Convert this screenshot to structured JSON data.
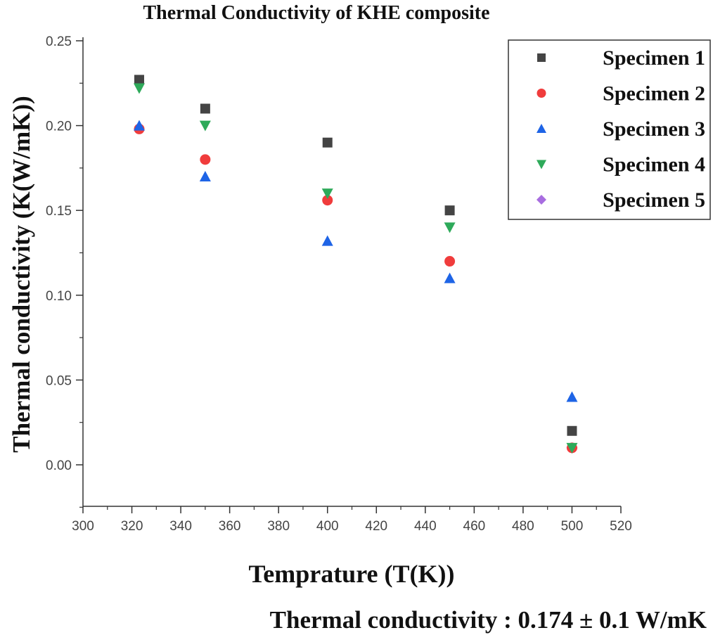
{
  "chart_data": {
    "type": "scatter",
    "title": "Thermal Conductivity of KHE composite",
    "xlabel": "Temprature (T(K))",
    "ylabel": "Thermal conductivity (K(W/mK))",
    "xlim": [
      300,
      520
    ],
    "ylim": [
      -0.025,
      0.25
    ],
    "xticks": [
      300,
      320,
      340,
      360,
      380,
      400,
      420,
      440,
      460,
      480,
      500,
      520
    ],
    "yticks": [
      "0.00",
      "0.05",
      "0.10",
      "0.15",
      "0.20",
      "0.25"
    ],
    "grid": false,
    "legend_position": "top-right",
    "annotation": "Thermal conductivity : 0.174 ± 0.1 W/mK",
    "series": [
      {
        "name": "Specimen 5",
        "marker": "diamond",
        "color": "#a86de0",
        "x": [
          500
        ],
        "y": [
          0.01
        ]
      },
      {
        "name": "Specimen 1",
        "marker": "square",
        "color": "#444444",
        "x": [
          323,
          350,
          400,
          450,
          500
        ],
        "y": [
          0.227,
          0.21,
          0.19,
          0.15,
          0.02
        ]
      },
      {
        "name": "Specimen 2",
        "marker": "circle",
        "color": "#f03c3c",
        "x": [
          323,
          350,
          400,
          450,
          500
        ],
        "y": [
          0.198,
          0.18,
          0.156,
          0.12,
          0.01
        ]
      },
      {
        "name": "Specimen 3",
        "marker": "triangle-up",
        "color": "#1e64e6",
        "x": [
          323,
          350,
          400,
          450,
          500
        ],
        "y": [
          0.2,
          0.17,
          0.132,
          0.11,
          0.04
        ]
      },
      {
        "name": "Specimen 4",
        "marker": "triangle-down",
        "color": "#2eaa5a",
        "x": [
          323,
          350,
          400,
          450,
          500
        ],
        "y": [
          0.222,
          0.2,
          0.16,
          0.14,
          0.01
        ]
      }
    ],
    "legend": [
      "Specimen 1",
      "Specimen 2",
      "Specimen 3",
      "Specimen 4",
      "Specimen 5"
    ]
  }
}
